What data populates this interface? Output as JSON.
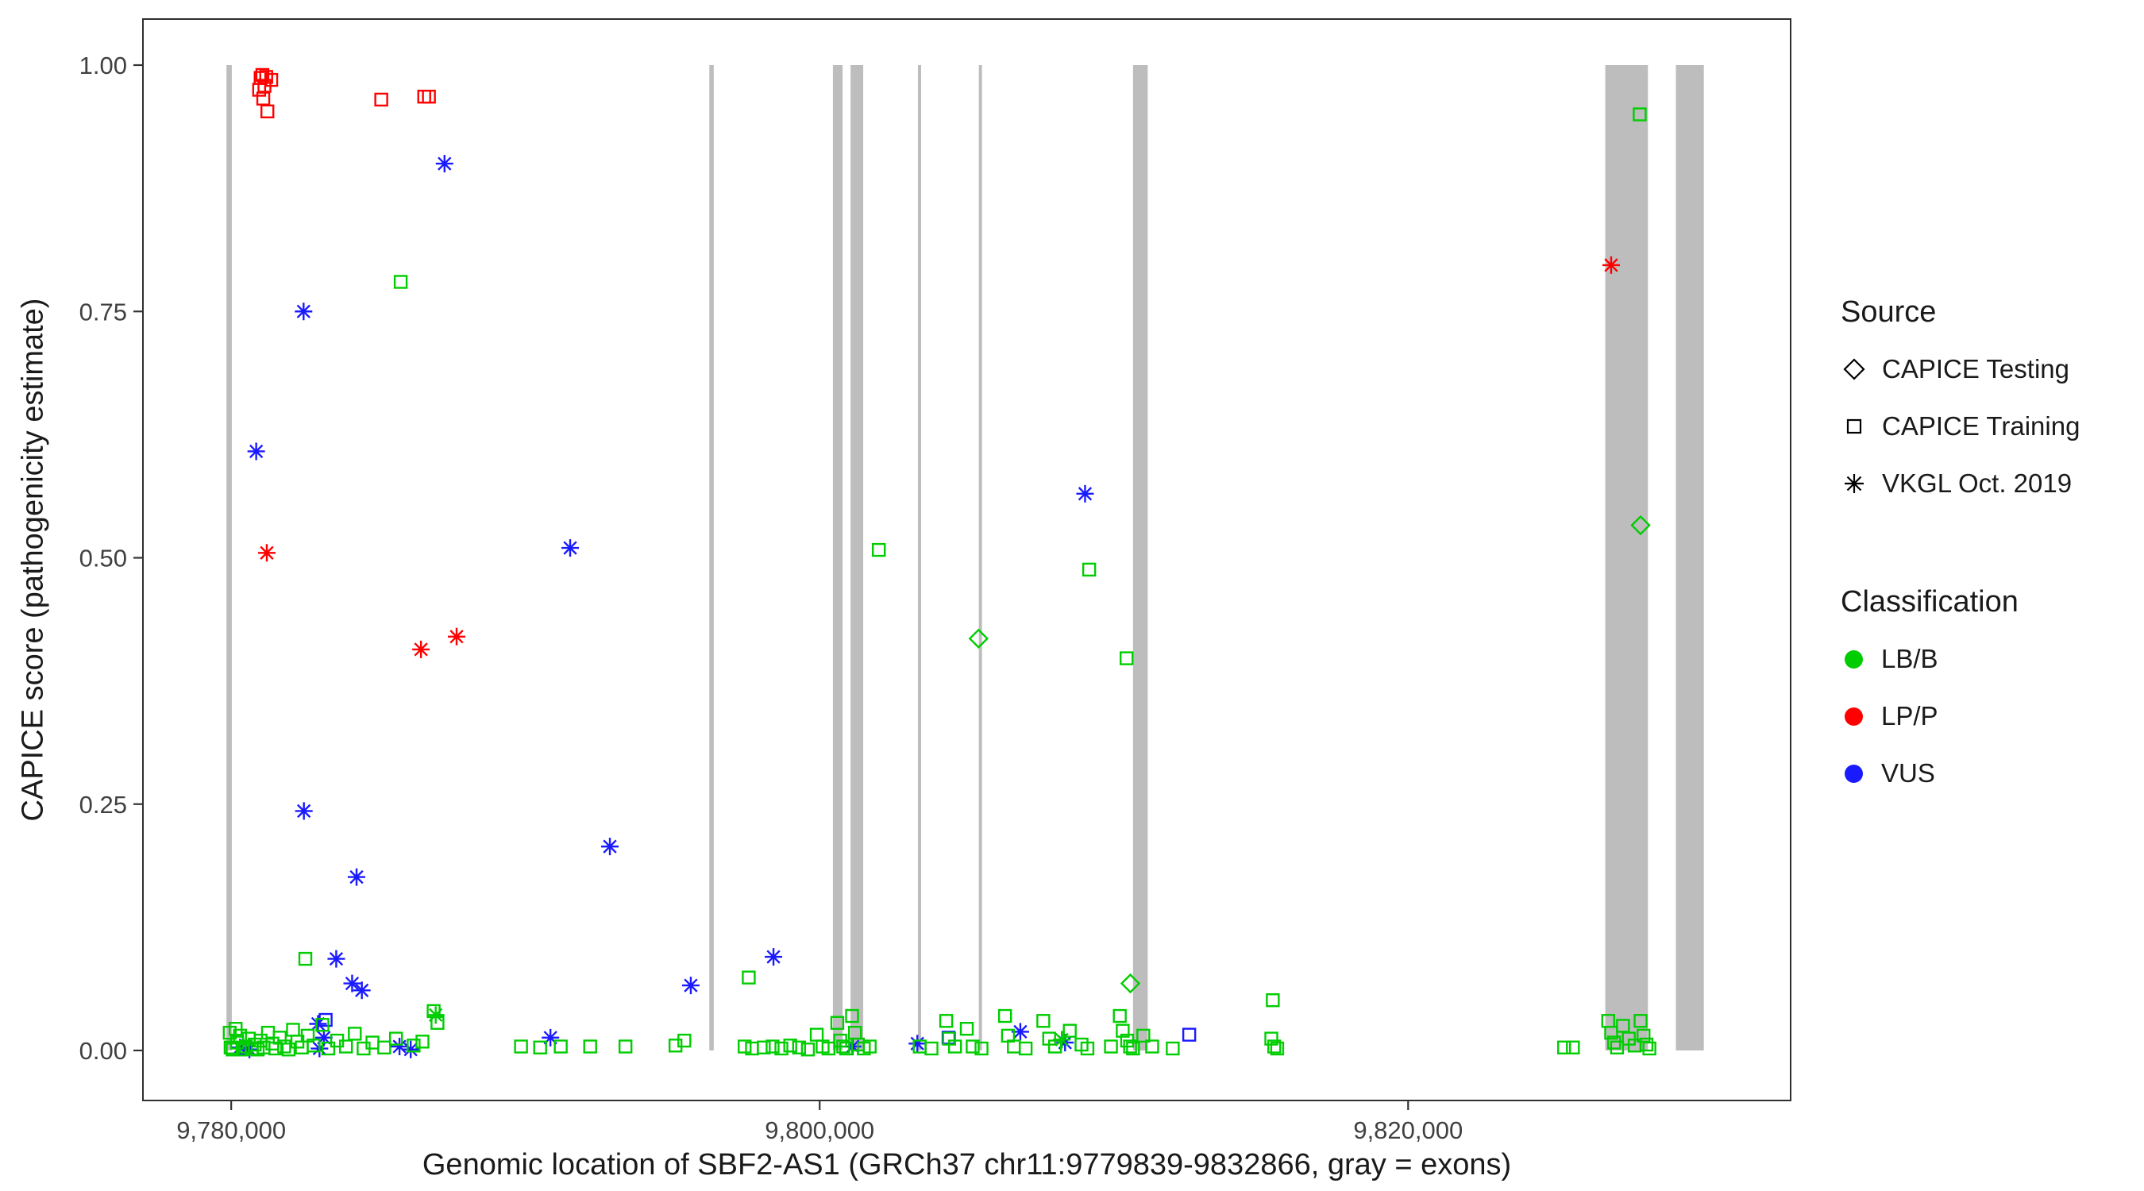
{
  "legend": {
    "source": {
      "title": "Source",
      "items": [
        {
          "label": "CAPICE Testing",
          "shape": "diamond"
        },
        {
          "label": "CAPICE Training",
          "shape": "square"
        },
        {
          "label": "VKGL Oct. 2019",
          "shape": "asterisk"
        }
      ]
    },
    "classification": {
      "title": "Classification",
      "items": [
        {
          "label": "LB/B",
          "color": "#00cd00"
        },
        {
          "label": "LP/P",
          "color": "#ff0000"
        },
        {
          "label": "VUS",
          "color": "#1a1aff"
        }
      ]
    }
  },
  "chart_data": {
    "type": "scatter",
    "title": "",
    "xlabel": "Genomic location of SBF2-AS1 (GRCh37 chr11:9779839-9832866, gray = exons)",
    "ylabel": "CAPICE score (pathogenicity estimate)",
    "xlim": [
      9777000,
      9833000
    ],
    "ylim": [
      0,
      1
    ],
    "grid": false,
    "legend_position": "right",
    "x_ticks": [
      {
        "value": 9780000,
        "label": "9,780,000"
      },
      {
        "value": 9800000,
        "label": "9,800,000"
      },
      {
        "value": 9820000,
        "label": "9,820,000"
      }
    ],
    "y_ticks": [
      {
        "value": 0.0,
        "label": "0.00"
      },
      {
        "value": 0.25,
        "label": "0.25"
      },
      {
        "value": 0.5,
        "label": "0.50"
      },
      {
        "value": 0.75,
        "label": "0.75"
      },
      {
        "value": 1.0,
        "label": "1.00"
      }
    ],
    "exon_color": "#bdbdbd",
    "exons": [
      [
        9779839,
        9780020
      ],
      [
        9796250,
        9796400
      ],
      [
        9800450,
        9800780
      ],
      [
        9801050,
        9801480
      ],
      [
        9803340,
        9803430
      ],
      [
        9805410,
        9805500
      ],
      [
        9810650,
        9811150
      ],
      [
        9826700,
        9828150
      ],
      [
        9829100,
        9830050
      ]
    ],
    "classification_colors": {
      "LB/B": "#00cd00",
      "LP/P": "#ff0000",
      "VUS": "#1a1aff"
    },
    "source_shapes": {
      "CAPICE Testing": "diamond",
      "CAPICE Training": "square",
      "VKGL Oct. 2019": "asterisk"
    },
    "points": [
      [
        9780950,
        0.975,
        "LP/P",
        "square"
      ],
      [
        9781000,
        0.987,
        "LP/P",
        "square"
      ],
      [
        9781060,
        0.99,
        "LP/P",
        "square"
      ],
      [
        9781130,
        0.979,
        "LP/P",
        "square"
      ],
      [
        9781090,
        0.966,
        "LP/P",
        "square"
      ],
      [
        9781190,
        0.988,
        "LP/P",
        "square"
      ],
      [
        9781230,
        0.953,
        "LP/P",
        "square"
      ],
      [
        9781360,
        0.985,
        "LP/P",
        "square"
      ],
      [
        9785100,
        0.965,
        "LP/P",
        "square"
      ],
      [
        9786560,
        0.968,
        "LP/P",
        "square"
      ],
      [
        9786720,
        0.968,
        "LP/P",
        "square"
      ],
      [
        9781210,
        0.505,
        "LP/P",
        "asterisk"
      ],
      [
        9786450,
        0.407,
        "LP/P",
        "asterisk"
      ],
      [
        9787660,
        0.42,
        "LP/P",
        "asterisk"
      ],
      [
        9826900,
        0.797,
        "LP/P",
        "asterisk"
      ],
      [
        9787250,
        0.9,
        "VUS",
        "asterisk"
      ],
      [
        9782460,
        0.75,
        "VUS",
        "asterisk"
      ],
      [
        9780850,
        0.608,
        "VUS",
        "asterisk"
      ],
      [
        9791520,
        0.51,
        "VUS",
        "asterisk"
      ],
      [
        9809020,
        0.565,
        "VUS",
        "asterisk"
      ],
      [
        9782470,
        0.243,
        "VUS",
        "asterisk"
      ],
      [
        9784260,
        0.176,
        "VUS",
        "asterisk"
      ],
      [
        9792870,
        0.207,
        "VUS",
        "asterisk"
      ],
      [
        9783570,
        0.093,
        "VUS",
        "asterisk"
      ],
      [
        9784110,
        0.068,
        "VUS",
        "asterisk"
      ],
      [
        9784440,
        0.061,
        "VUS",
        "asterisk"
      ],
      [
        9795620,
        0.066,
        "VUS",
        "asterisk"
      ],
      [
        9798430,
        0.095,
        "VUS",
        "asterisk"
      ],
      [
        9780300,
        0.003,
        "VUS",
        "asterisk"
      ],
      [
        9780620,
        0.001,
        "VUS",
        "asterisk"
      ],
      [
        9782950,
        0.027,
        "VUS",
        "asterisk"
      ],
      [
        9783150,
        0.013,
        "VUS",
        "asterisk"
      ],
      [
        9785720,
        0.004,
        "VUS",
        "asterisk"
      ],
      [
        9790850,
        0.013,
        "VUS",
        "asterisk"
      ],
      [
        9801120,
        0.004,
        "VUS",
        "asterisk"
      ],
      [
        9803320,
        0.007,
        "VUS",
        "asterisk"
      ],
      [
        9806820,
        0.019,
        "VUS",
        "asterisk"
      ],
      [
        9808340,
        0.008,
        "VUS",
        "asterisk"
      ],
      [
        9786100,
        0.001,
        "VUS",
        "asterisk"
      ],
      [
        9783000,
        0.002,
        "VUS",
        "asterisk"
      ],
      [
        9783210,
        0.031,
        "VUS",
        "square"
      ],
      [
        9804380,
        0.013,
        "VUS",
        "square"
      ],
      [
        9812560,
        0.016,
        "VUS",
        "square"
      ],
      [
        9780460,
        0.002,
        "VUS",
        "square"
      ],
      [
        9805400,
        0.418,
        "LB/B",
        "diamond"
      ],
      [
        9827900,
        0.533,
        "LB/B",
        "diamond"
      ],
      [
        9810560,
        0.068,
        "LB/B",
        "diamond"
      ],
      [
        9786950,
        0.036,
        "LB/B",
        "asterisk"
      ],
      [
        9808230,
        0.011,
        "LB/B",
        "asterisk"
      ],
      [
        9785760,
        0.78,
        "LB/B",
        "square"
      ],
      [
        9802010,
        0.508,
        "LB/B",
        "square"
      ],
      [
        9809160,
        0.488,
        "LB/B",
        "square"
      ],
      [
        9810430,
        0.398,
        "LB/B",
        "square"
      ],
      [
        9827870,
        0.95,
        "LB/B",
        "square"
      ],
      [
        9815400,
        0.051,
        "LB/B",
        "square"
      ],
      [
        9782520,
        0.093,
        "LB/B",
        "square"
      ],
      [
        9797590,
        0.074,
        "LB/B",
        "square"
      ],
      [
        9786880,
        0.04,
        "LB/B",
        "square"
      ],
      [
        9787010,
        0.028,
        "LB/B",
        "square"
      ],
      [
        9779950,
        0.018,
        "LB/B",
        "square"
      ],
      [
        9779980,
        0.003,
        "LB/B",
        "square"
      ],
      [
        9780050,
        0.001,
        "LB/B",
        "square"
      ],
      [
        9780150,
        0.022,
        "LB/B",
        "square"
      ],
      [
        9780200,
        0.008,
        "LB/B",
        "square"
      ],
      [
        9780300,
        0.015,
        "LB/B",
        "square"
      ],
      [
        9780400,
        0.001,
        "LB/B",
        "square"
      ],
      [
        9780500,
        0.004,
        "LB/B",
        "square"
      ],
      [
        9780600,
        0.012,
        "LB/B",
        "square"
      ],
      [
        9780700,
        0.002,
        "LB/B",
        "square"
      ],
      [
        9780800,
        0.006,
        "LB/B",
        "square"
      ],
      [
        9780900,
        0.001,
        "LB/B",
        "square"
      ],
      [
        9781000,
        0.01,
        "LB/B",
        "square"
      ],
      [
        9781100,
        0.003,
        "LB/B",
        "square"
      ],
      [
        9781250,
        0.018,
        "LB/B",
        "square"
      ],
      [
        9781400,
        0.007,
        "LB/B",
        "square"
      ],
      [
        9781500,
        0.002,
        "LB/B",
        "square"
      ],
      [
        9781650,
        0.013,
        "LB/B",
        "square"
      ],
      [
        9781800,
        0.004,
        "LB/B",
        "square"
      ],
      [
        9781950,
        0.001,
        "LB/B",
        "square"
      ],
      [
        9782100,
        0.021,
        "LB/B",
        "square"
      ],
      [
        9782250,
        0.009,
        "LB/B",
        "square"
      ],
      [
        9782400,
        0.003,
        "LB/B",
        "square"
      ],
      [
        9782600,
        0.015,
        "LB/B",
        "square"
      ],
      [
        9782800,
        0.005,
        "LB/B",
        "square"
      ],
      [
        9783100,
        0.026,
        "LB/B",
        "square"
      ],
      [
        9783300,
        0.002,
        "LB/B",
        "square"
      ],
      [
        9783600,
        0.01,
        "LB/B",
        "square"
      ],
      [
        9783900,
        0.004,
        "LB/B",
        "square"
      ],
      [
        9784200,
        0.017,
        "LB/B",
        "square"
      ],
      [
        9784500,
        0.002,
        "LB/B",
        "square"
      ],
      [
        9784800,
        0.008,
        "LB/B",
        "square"
      ],
      [
        9785200,
        0.003,
        "LB/B",
        "square"
      ],
      [
        9785600,
        0.012,
        "LB/B",
        "square"
      ],
      [
        9786200,
        0.005,
        "LB/B",
        "square"
      ],
      [
        9786500,
        0.009,
        "LB/B",
        "square"
      ],
      [
        9789850,
        0.004,
        "LB/B",
        "square"
      ],
      [
        9790500,
        0.003,
        "LB/B",
        "square"
      ],
      [
        9791200,
        0.004,
        "LB/B",
        "square"
      ],
      [
        9792200,
        0.004,
        "LB/B",
        "square"
      ],
      [
        9793400,
        0.004,
        "LB/B",
        "square"
      ],
      [
        9795100,
        0.005,
        "LB/B",
        "square"
      ],
      [
        9795400,
        0.01,
        "LB/B",
        "square"
      ],
      [
        9797450,
        0.004,
        "LB/B",
        "square"
      ],
      [
        9797700,
        0.002,
        "LB/B",
        "square"
      ],
      [
        9798100,
        0.003,
        "LB/B",
        "square"
      ],
      [
        9798400,
        0.004,
        "LB/B",
        "square"
      ],
      [
        9798700,
        0.002,
        "LB/B",
        "square"
      ],
      [
        9799000,
        0.005,
        "LB/B",
        "square"
      ],
      [
        9799300,
        0.003,
        "LB/B",
        "square"
      ],
      [
        9799600,
        0.001,
        "LB/B",
        "square"
      ],
      [
        9799900,
        0.016,
        "LB/B",
        "square"
      ],
      [
        9800100,
        0.004,
        "LB/B",
        "square"
      ],
      [
        9800300,
        0.002,
        "LB/B",
        "square"
      ],
      [
        9800600,
        0.028,
        "LB/B",
        "square"
      ],
      [
        9800700,
        0.01,
        "LB/B",
        "square"
      ],
      [
        9800800,
        0.004,
        "LB/B",
        "square"
      ],
      [
        9800900,
        0.002,
        "LB/B",
        "square"
      ],
      [
        9801100,
        0.035,
        "LB/B",
        "square"
      ],
      [
        9801200,
        0.018,
        "LB/B",
        "square"
      ],
      [
        9801300,
        0.006,
        "LB/B",
        "square"
      ],
      [
        9801500,
        0.002,
        "LB/B",
        "square"
      ],
      [
        9801700,
        0.004,
        "LB/B",
        "square"
      ],
      [
        9803400,
        0.004,
        "LB/B",
        "square"
      ],
      [
        9803800,
        0.002,
        "LB/B",
        "square"
      ],
      [
        9804300,
        0.03,
        "LB/B",
        "square"
      ],
      [
        9804400,
        0.012,
        "LB/B",
        "square"
      ],
      [
        9804600,
        0.004,
        "LB/B",
        "square"
      ],
      [
        9805000,
        0.022,
        "LB/B",
        "square"
      ],
      [
        9805200,
        0.004,
        "LB/B",
        "square"
      ],
      [
        9805500,
        0.002,
        "LB/B",
        "square"
      ],
      [
        9806300,
        0.035,
        "LB/B",
        "square"
      ],
      [
        9806400,
        0.015,
        "LB/B",
        "square"
      ],
      [
        9806600,
        0.004,
        "LB/B",
        "square"
      ],
      [
        9807000,
        0.002,
        "LB/B",
        "square"
      ],
      [
        9807600,
        0.03,
        "LB/B",
        "square"
      ],
      [
        9807800,
        0.012,
        "LB/B",
        "square"
      ],
      [
        9808000,
        0.004,
        "LB/B",
        "square"
      ],
      [
        9808500,
        0.02,
        "LB/B",
        "square"
      ],
      [
        9808900,
        0.006,
        "LB/B",
        "square"
      ],
      [
        9809100,
        0.002,
        "LB/B",
        "square"
      ],
      [
        9809900,
        0.004,
        "LB/B",
        "square"
      ],
      [
        9810200,
        0.035,
        "LB/B",
        "square"
      ],
      [
        9810300,
        0.02,
        "LB/B",
        "square"
      ],
      [
        9810450,
        0.01,
        "LB/B",
        "square"
      ],
      [
        9810550,
        0.004,
        "LB/B",
        "square"
      ],
      [
        9810650,
        0.002,
        "LB/B",
        "square"
      ],
      [
        9811000,
        0.015,
        "LB/B",
        "square"
      ],
      [
        9811300,
        0.004,
        "LB/B",
        "square"
      ],
      [
        9812000,
        0.002,
        "LB/B",
        "square"
      ],
      [
        9815350,
        0.012,
        "LB/B",
        "square"
      ],
      [
        9815450,
        0.004,
        "LB/B",
        "square"
      ],
      [
        9815550,
        0.002,
        "LB/B",
        "square"
      ],
      [
        9825300,
        0.003,
        "LB/B",
        "square"
      ],
      [
        9825600,
        0.003,
        "LB/B",
        "square"
      ],
      [
        9826800,
        0.03,
        "LB/B",
        "square"
      ],
      [
        9826900,
        0.018,
        "LB/B",
        "square"
      ],
      [
        9827000,
        0.008,
        "LB/B",
        "square"
      ],
      [
        9827100,
        0.003,
        "LB/B",
        "square"
      ],
      [
        9827300,
        0.025,
        "LB/B",
        "square"
      ],
      [
        9827500,
        0.012,
        "LB/B",
        "square"
      ],
      [
        9827700,
        0.005,
        "LB/B",
        "square"
      ],
      [
        9827900,
        0.03,
        "LB/B",
        "square"
      ],
      [
        9828000,
        0.015,
        "LB/B",
        "square"
      ],
      [
        9828100,
        0.006,
        "LB/B",
        "square"
      ],
      [
        9828200,
        0.002,
        "LB/B",
        "square"
      ]
    ]
  }
}
